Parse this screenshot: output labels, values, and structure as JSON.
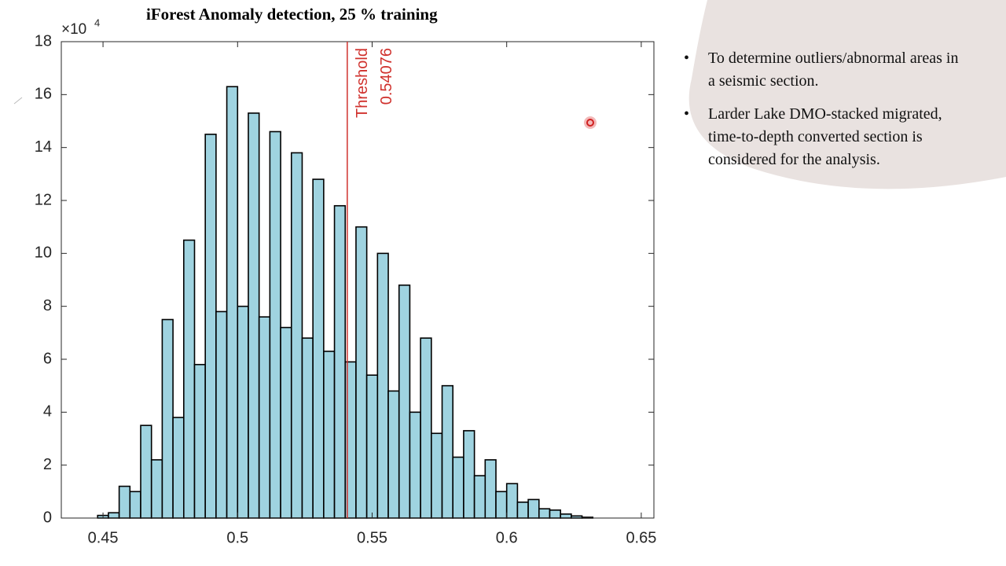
{
  "chart_data": {
    "type": "histogram",
    "title": "iForest Anomaly detection, 25 % training",
    "y_exponent": {
      "base": "×10",
      "power": "4"
    },
    "bins": [
      0.448,
      0.452,
      0.456,
      0.46,
      0.464,
      0.468,
      0.472,
      0.476,
      0.48,
      0.484,
      0.488,
      0.492,
      0.496,
      0.5,
      0.504,
      0.508,
      0.512,
      0.516,
      0.52,
      0.524,
      0.528,
      0.532,
      0.536,
      0.54,
      0.544,
      0.548,
      0.552,
      0.556,
      0.56,
      0.564,
      0.568,
      0.572,
      0.576,
      0.58,
      0.584,
      0.588,
      0.592,
      0.596,
      0.6,
      0.604,
      0.608,
      0.612,
      0.616,
      0.62,
      0.624,
      0.628,
      0.632
    ],
    "values": [
      0.1,
      0.2,
      1.2,
      1.0,
      3.5,
      2.2,
      7.5,
      3.8,
      10.5,
      5.8,
      14.5,
      7.8,
      16.3,
      8.0,
      15.3,
      7.6,
      14.6,
      7.2,
      13.8,
      6.8,
      12.8,
      6.3,
      11.8,
      5.9,
      11.0,
      5.4,
      10.0,
      4.8,
      8.8,
      4.0,
      6.8,
      3.2,
      5.0,
      2.3,
      3.3,
      1.6,
      2.2,
      1.0,
      1.3,
      0.6,
      0.7,
      0.35,
      0.3,
      0.15,
      0.08,
      0.03
    ],
    "color": "#9fd3e0",
    "xlim": [
      0.4345,
      0.6547
    ],
    "xticks": [
      0.45,
      0.5,
      0.55,
      0.6,
      0.65
    ],
    "ylim": [
      0,
      18
    ],
    "yticks": [
      0,
      2,
      4,
      6,
      8,
      10,
      12,
      14,
      16,
      18
    ],
    "threshold": {
      "label": "Threshold",
      "value": 0.54076,
      "color": "#d0312d"
    }
  },
  "slide": {
    "bullets": [
      "To determine outliers/abnormal areas in a seismic section.",
      "Larder Lake DMO-stacked migrated, time-to-depth converted section is considered for the analysis."
    ]
  }
}
